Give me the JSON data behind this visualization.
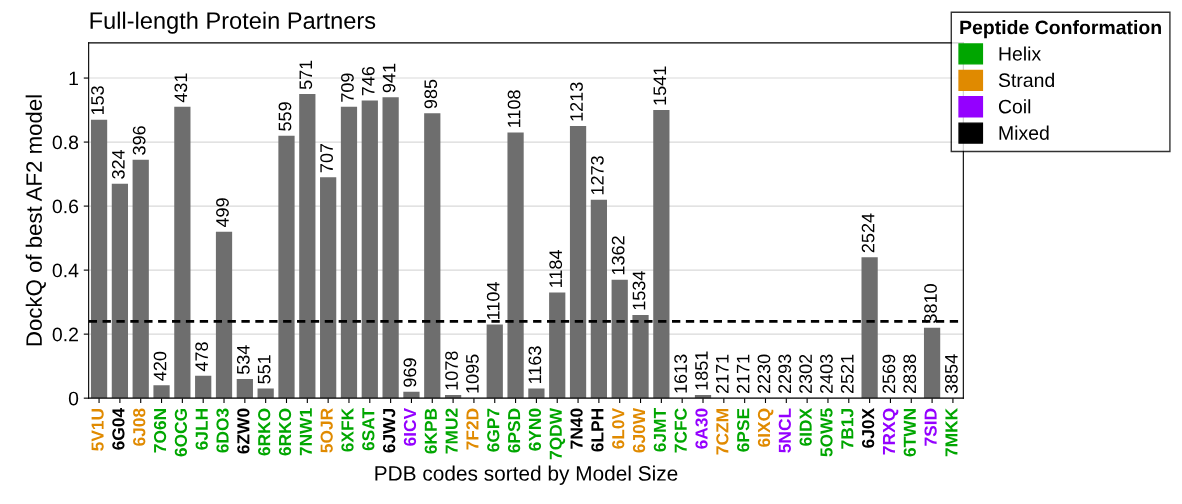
{
  "chart_data": {
    "type": "bar",
    "title": "Full-length Protein Partners",
    "xlabel": "PDB codes sorted by Model Size",
    "ylabel": "DockQ of best AF2 model",
    "categories": [
      "5V1U",
      "6G04",
      "6J08",
      "7O6N",
      "6OCG",
      "6JLH",
      "6DO3",
      "6ZW0",
      "6RKO",
      "6RKO",
      "7NW1",
      "5OJR",
      "6XFK",
      "6SAT",
      "6JWJ",
      "6ICV",
      "6KPB",
      "7MU2",
      "7F2D",
      "6GP7",
      "6PSD",
      "6YN0",
      "7QDW",
      "7N40",
      "6LPH",
      "6L0V",
      "6J0W",
      "6JMT",
      "7CFC",
      "6A30",
      "7CZM",
      "6PSE",
      "6IXQ",
      "5NCL",
      "6IDX",
      "5OW5",
      "7B1J",
      "6J0X",
      "7RXQ",
      "6TWN",
      "7SID",
      "7MKK"
    ],
    "values": [
      0.87,
      0.67,
      0.745,
      0.04,
      0.91,
      0.07,
      0.52,
      0.06,
      0.03,
      0.82,
      0.95,
      0.69,
      0.91,
      0.93,
      0.94,
      0.02,
      0.89,
      0.01,
      0,
      0.23,
      0.83,
      0.03,
      0.33,
      0.85,
      0.62,
      0.37,
      0.26,
      0.9,
      0,
      0.01,
      0,
      0,
      0,
      0,
      0,
      0,
      0,
      0.44,
      0,
      0,
      0.22,
      0
    ],
    "color": "#6e6e6e",
    "annotations": [
      {
        "text": "153",
        "x": "5V1U",
        "y": 0.87
      },
      {
        "text": "324",
        "x": "6G04",
        "y": 0.67
      },
      {
        "text": "396",
        "x": "6J08",
        "y": 0.745
      },
      {
        "text": "420",
        "x": "7O6N",
        "y": 0.04
      },
      {
        "text": "431",
        "x": "6OCG",
        "y": 0.91
      },
      {
        "text": "478",
        "x": "6JLH",
        "y": 0.07
      },
      {
        "text": "499",
        "x": "6DO3",
        "y": 0.52
      },
      {
        "text": "534",
        "x": "6ZW0",
        "y": 0.06
      },
      "551",
      "559",
      {
        "text": "571",
        "x": "7NW1",
        "y": 0.95
      },
      {
        "text": "707",
        "x": "5OJR",
        "y": 0.69
      },
      {
        "text": "709",
        "x": "6XFK",
        "y": 0.91
      },
      {
        "text": "746",
        "x": "6SAT",
        "y": 0.93
      },
      {
        "text": "941",
        "x": "6JWJ",
        "y": 0.94
      },
      {
        "text": "969",
        "x": "6ICV",
        "y": 0.02
      },
      {
        "text": "985",
        "x": "6KPB",
        "y": 0.89
      },
      {
        "text": "1078",
        "x": "7MU2",
        "y": 0.01
      },
      {
        "text": "1095",
        "x": "7F2D",
        "y": 0
      },
      {
        "text": "1104",
        "x": "6GP7",
        "y": 0.23
      },
      {
        "text": "1108",
        "x": "6PSD",
        "y": 0.83
      },
      {
        "text": "1163",
        "x": "6YN0",
        "y": 0.03
      },
      {
        "text": "1184",
        "x": "7QDW",
        "y": 0.33
      },
      {
        "text": "1213",
        "x": "7N40",
        "y": 0.85
      },
      {
        "text": "1273",
        "x": "6LPH",
        "y": 0.62
      },
      {
        "text": "1362",
        "x": "6L0V",
        "y": 0.37
      },
      {
        "text": "1534",
        "x": "6J0W",
        "y": 0.26
      },
      {
        "text": "1541",
        "x": "6JMT",
        "y": 0.9
      },
      {
        "text": "1613",
        "x": "7CFC",
        "y": 0
      },
      {
        "text": "1851",
        "x": "6A30",
        "y": 0.01
      },
      {
        "text": "2171",
        "x": "7CZM",
        "y": 0
      },
      {
        "text": "2171",
        "x": "6PSE",
        "y": 0
      },
      {
        "text": "2230",
        "x": "6IXQ",
        "y": 0
      },
      {
        "text": "2293",
        "x": "5NCL",
        "y": 0
      },
      {
        "text": "2302",
        "x": "6IDX",
        "y": 0
      },
      {
        "text": "2403",
        "x": "5OW5",
        "y": 0
      },
      {
        "text": "2521",
        "x": "7B1J",
        "y": 0
      },
      {
        "text": "2524",
        "x": "6J0X",
        "y": 0.44
      },
      {
        "text": "2569",
        "x": "7RXQ",
        "y": 0
      },
      {
        "text": "2838",
        "x": "6TWN",
        "y": 0
      },
      {
        "text": "3810",
        "x": "7SID",
        "y": 0.22
      },
      {
        "text": "3854",
        "x": "7MKK",
        "y": 0
      },
      "Helix",
      "Strand",
      "Coil",
      "Mixed"
    ],
    "legend_title": "Peptide Conformation",
    "ylim": [
      0,
      1.11
    ],
    "yticks": [
      0,
      0.2,
      0.4,
      0.6,
      0.8,
      1
    ],
    "grid": "y",
    "ref_lines": [
      {
        "axis": "y",
        "value": 0.24,
        "line_style": "dashed",
        "color": "#000000"
      }
    ]
  }
}
